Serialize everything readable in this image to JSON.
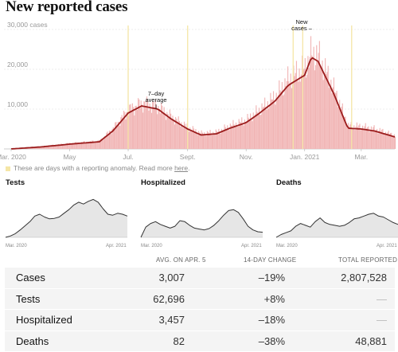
{
  "title": "New reported cases",
  "annotations": {
    "avg_line1": "7–day",
    "avg_line2": "average",
    "new_line1": "New",
    "new_line2": "cases –"
  },
  "note": {
    "text": "These are days with a reporting anomaly. Read more",
    "link": "here",
    "end": "."
  },
  "colors": {
    "avg_line": "#9b1c1c",
    "bars": "#f1b5b5",
    "anomaly": "#f5e6a6",
    "small_fill": "#e6e6e6",
    "small_line": "#333333"
  },
  "chart_data": [
    {
      "type": "area",
      "title": "New reported cases",
      "ylim": [
        0,
        30000
      ],
      "yticks": [
        {
          "value": 10000,
          "label": "10,000"
        },
        {
          "value": 20000,
          "label": "20,000"
        },
        {
          "value": 30000,
          "label": "30,000 cases"
        }
      ],
      "xticks": [
        "Mar. 2020",
        "May",
        "Jul.",
        "Sept.",
        "Nov.",
        "Jan. 2021",
        "Mar."
      ],
      "grid": true,
      "series": [
        {
          "kind": "7-day average",
          "x": [
            "2020-03-01",
            "2020-04-01",
            "2020-05-01",
            "2020-06-01",
            "2020-06-15",
            "2020-07-01",
            "2020-07-15",
            "2020-08-01",
            "2020-08-15",
            "2020-09-01",
            "2020-09-15",
            "2020-10-01",
            "2020-10-15",
            "2020-11-01",
            "2020-11-15",
            "2020-12-01",
            "2020-12-15",
            "2021-01-01",
            "2021-01-08",
            "2021-01-15",
            "2021-02-01",
            "2021-02-15",
            "2021-03-01",
            "2021-03-15",
            "2021-04-05"
          ],
          "y": [
            0,
            500,
            1200,
            1800,
            4500,
            9000,
            10800,
            10000,
            7500,
            5000,
            3500,
            3800,
            5200,
            6600,
            9000,
            12000,
            16000,
            18500,
            23000,
            22000,
            13500,
            5200,
            5000,
            4500,
            3007
          ]
        },
        {
          "kind": "daily new cases",
          "x": [
            "2020-03-01",
            "2020-04-01",
            "2020-05-01",
            "2020-06-01",
            "2020-06-15",
            "2020-07-01",
            "2020-07-15",
            "2020-08-01",
            "2020-08-15",
            "2020-09-01",
            "2020-09-15",
            "2020-10-01",
            "2020-10-15",
            "2020-11-01",
            "2020-11-15",
            "2020-12-01",
            "2020-12-15",
            "2021-01-01",
            "2021-01-08",
            "2021-01-15",
            "2021-02-01",
            "2021-02-15",
            "2021-03-01",
            "2021-03-15",
            "2021-04-05"
          ],
          "y": [
            0,
            600,
            1400,
            2000,
            5200,
            9800,
            11500,
            10600,
            8000,
            5400,
            3900,
            4200,
            5800,
            7200,
            9800,
            13000,
            17500,
            20200,
            24000,
            23200,
            14500,
            5800,
            5600,
            5000,
            3400
          ]
        }
      ],
      "anomaly_dates": [
        "2020-07-01",
        "2020-09-01",
        "2020-12-20",
        "2020-12-30",
        "2021-02-19"
      ]
    },
    {
      "type": "area",
      "title": "Tests",
      "x_range": [
        "Mar. 2020",
        "Apr. 2021"
      ],
      "values": [
        0,
        3,
        8,
        16,
        25,
        34,
        46,
        50,
        44,
        40,
        41,
        44,
        52,
        60,
        70,
        76,
        72,
        78,
        82,
        76,
        62,
        50,
        48,
        52,
        50,
        46
      ]
    },
    {
      "type": "area",
      "title": "Hospitalized",
      "x_range": [
        "Mar. 2020",
        "Apr. 2021"
      ],
      "values": [
        0,
        22,
        30,
        34,
        28,
        24,
        20,
        24,
        36,
        34,
        26,
        20,
        18,
        16,
        19,
        26,
        36,
        48,
        58,
        60,
        54,
        40,
        24,
        16,
        12,
        11
      ]
    },
    {
      "type": "area",
      "title": "Deaths",
      "x_range": [
        "Mar. 2020",
        "Apr. 2021"
      ],
      "values": [
        0,
        6,
        10,
        14,
        24,
        30,
        26,
        22,
        34,
        42,
        32,
        28,
        26,
        24,
        26,
        32,
        40,
        42,
        46,
        50,
        52,
        46,
        44,
        38,
        32,
        28
      ]
    },
    {
      "type": "table",
      "columns": [
        "",
        "AVG. ON APR. 5",
        "14-DAY CHANGE",
        "TOTAL REPORTED"
      ],
      "rows": [
        {
          "label": "Cases",
          "avg": "3,007",
          "change": "–19%",
          "total": "2,807,528"
        },
        {
          "label": "Tests",
          "avg": "62,696",
          "change": "+8%",
          "total": "—"
        },
        {
          "label": "Hospitalized",
          "avg": "3,457",
          "change": "–18%",
          "total": "—"
        },
        {
          "label": "Deaths",
          "avg": "82",
          "change": "–38%",
          "total": "48,881"
        }
      ]
    }
  ]
}
